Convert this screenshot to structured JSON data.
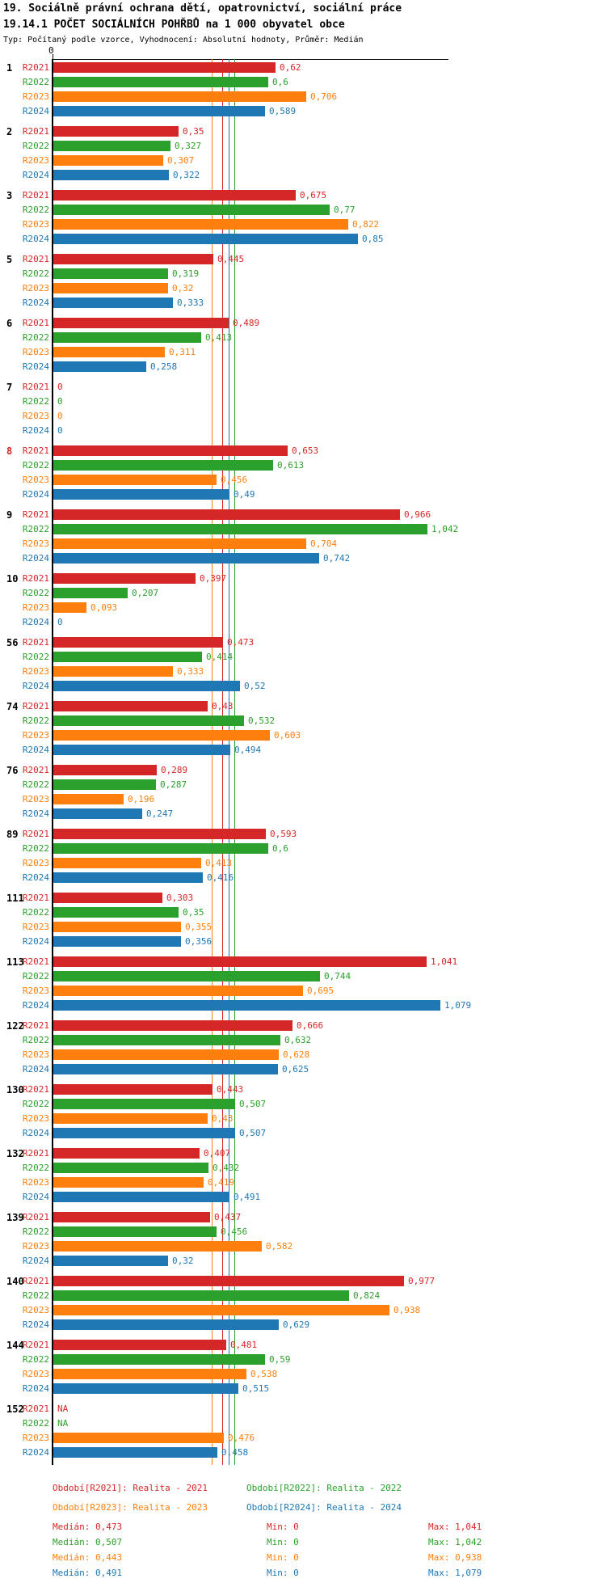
{
  "page": {
    "title_line1": "19. Sociálně právní ochrana dětí, opatrovnictví, sociální práce",
    "title_line2": "19.14.1 POČET SOCIÁLNÍCH POHŘBŮ na 1 000 obyvatel obce",
    "subtitle": "Typ: Počítaný podle vzorce, Vyhodnocení: Absolutní hodnoty, Průměr: Medián"
  },
  "chart_data": {
    "type": "bar",
    "orientation": "horizontal",
    "x_axis": {
      "tick_label": "0",
      "min": 0,
      "visible_max": 1.1,
      "gridlines": false
    },
    "legend_position": "bottom",
    "series": [
      {
        "name": "R2021",
        "color": "#d62728",
        "legend_label": "Období[R2021]: Realita - 2021",
        "median": 0.473,
        "stats": {
          "median_label": "Medián: 0,473",
          "min_label": "Min: 0",
          "max_label": "Max: 1,041"
        }
      },
      {
        "name": "R2022",
        "color": "#2ca02c",
        "legend_label": "Období[R2022]: Realita - 2022",
        "median": 0.507,
        "stats": {
          "median_label": "Medián: 0,507",
          "min_label": "Min: 0",
          "max_label": "Max: 1,042"
        }
      },
      {
        "name": "R2023",
        "color": "#ff7f0e",
        "legend_label": "Období[R2023]: Realita - 2023",
        "median": 0.443,
        "stats": {
          "median_label": "Medián: 0,443",
          "min_label": "Min: 0",
          "max_label": "Max: 0,938"
        }
      },
      {
        "name": "R2024",
        "color": "#1f77b4",
        "legend_label": "Období[R2024]: Realita - 2024",
        "median": 0.491,
        "stats": {
          "median_label": "Medián: 0,491",
          "min_label": "Min: 0",
          "max_label": "Max: 1,079"
        }
      }
    ],
    "groups": [
      {
        "label": "1",
        "highlight": false,
        "values": [
          0.62,
          0.6,
          0.706,
          0.589
        ],
        "value_labels": [
          "0,62",
          "0,6",
          "0,706",
          "0,589"
        ]
      },
      {
        "label": "2",
        "highlight": false,
        "values": [
          0.35,
          0.327,
          0.307,
          0.322
        ],
        "value_labels": [
          "0,35",
          "0,327",
          "0,307",
          "0,322"
        ]
      },
      {
        "label": "3",
        "highlight": false,
        "values": [
          0.675,
          0.77,
          0.822,
          0.85
        ],
        "value_labels": [
          "0,675",
          "0,77",
          "0,822",
          "0,85"
        ]
      },
      {
        "label": "5",
        "highlight": false,
        "values": [
          0.445,
          0.319,
          0.32,
          0.333
        ],
        "value_labels": [
          "0,445",
          "0,319",
          "0,32",
          "0,333"
        ]
      },
      {
        "label": "6",
        "highlight": false,
        "values": [
          0.489,
          0.413,
          0.311,
          0.258
        ],
        "value_labels": [
          "0,489",
          "0,413",
          "0,311",
          "0,258"
        ]
      },
      {
        "label": "7",
        "highlight": false,
        "values": [
          0,
          0,
          0,
          0
        ],
        "value_labels": [
          "0",
          "0",
          "0",
          "0"
        ]
      },
      {
        "label": "8",
        "highlight": true,
        "values": [
          0.653,
          0.613,
          0.456,
          0.49
        ],
        "value_labels": [
          "0,653",
          "0,613",
          "0,456",
          "0,49"
        ]
      },
      {
        "label": "9",
        "highlight": false,
        "values": [
          0.966,
          1.042,
          0.704,
          0.742
        ],
        "value_labels": [
          "0,966",
          "1,042",
          "0,704",
          "0,742"
        ]
      },
      {
        "label": "10",
        "highlight": false,
        "values": [
          0.397,
          0.207,
          0.093,
          0
        ],
        "value_labels": [
          "0,397",
          "0,207",
          "0,093",
          "0"
        ]
      },
      {
        "label": "56",
        "highlight": false,
        "values": [
          0.473,
          0.414,
          0.333,
          0.52
        ],
        "value_labels": [
          "0,473",
          "0,414",
          "0,333",
          "0,52"
        ]
      },
      {
        "label": "74",
        "highlight": false,
        "values": [
          0.43,
          0.532,
          0.603,
          0.494
        ],
        "value_labels": [
          "0,43",
          "0,532",
          "0,603",
          "0,494"
        ]
      },
      {
        "label": "76",
        "highlight": false,
        "values": [
          0.289,
          0.287,
          0.196,
          0.247
        ],
        "value_labels": [
          "0,289",
          "0,287",
          "0,196",
          "0,247"
        ]
      },
      {
        "label": "89",
        "highlight": false,
        "values": [
          0.593,
          0.6,
          0.413,
          0.416
        ],
        "value_labels": [
          "0,593",
          "0,6",
          "0,413",
          "0,416"
        ]
      },
      {
        "label": "111",
        "highlight": false,
        "values": [
          0.303,
          0.35,
          0.355,
          0.356
        ],
        "value_labels": [
          "0,303",
          "0,35",
          "0,355",
          "0,356"
        ]
      },
      {
        "label": "113",
        "highlight": false,
        "values": [
          1.041,
          0.744,
          0.695,
          1.079
        ],
        "value_labels": [
          "1,041",
          "0,744",
          "0,695",
          "1,079"
        ]
      },
      {
        "label": "122",
        "highlight": false,
        "values": [
          0.666,
          0.632,
          0.628,
          0.625
        ],
        "value_labels": [
          "0,666",
          "0,632",
          "0,628",
          "0,625"
        ]
      },
      {
        "label": "130",
        "highlight": false,
        "values": [
          0.443,
          0.507,
          0.43,
          0.507
        ],
        "value_labels": [
          "0,443",
          "0,507",
          "0,43",
          "0,507"
        ]
      },
      {
        "label": "132",
        "highlight": false,
        "values": [
          0.407,
          0.432,
          0.419,
          0.491
        ],
        "value_labels": [
          "0,407",
          "0,432",
          "0,419",
          "0,491"
        ]
      },
      {
        "label": "139",
        "highlight": false,
        "values": [
          0.437,
          0.456,
          0.582,
          0.32
        ],
        "value_labels": [
          "0,437",
          "0,456",
          "0,582",
          "0,32"
        ]
      },
      {
        "label": "140",
        "highlight": false,
        "values": [
          0.977,
          0.824,
          0.938,
          0.629
        ],
        "value_labels": [
          "0,977",
          "0,824",
          "0,938",
          "0,629"
        ]
      },
      {
        "label": "144",
        "highlight": false,
        "values": [
          0.481,
          0.59,
          0.538,
          0.515
        ],
        "value_labels": [
          "0,481",
          "0,59",
          "0,538",
          "0,515"
        ]
      },
      {
        "label": "152",
        "highlight": false,
        "values": [
          null,
          null,
          0.476,
          0.458
        ],
        "value_labels": [
          "NA",
          "NA",
          "0,476",
          "0,458"
        ]
      }
    ]
  }
}
